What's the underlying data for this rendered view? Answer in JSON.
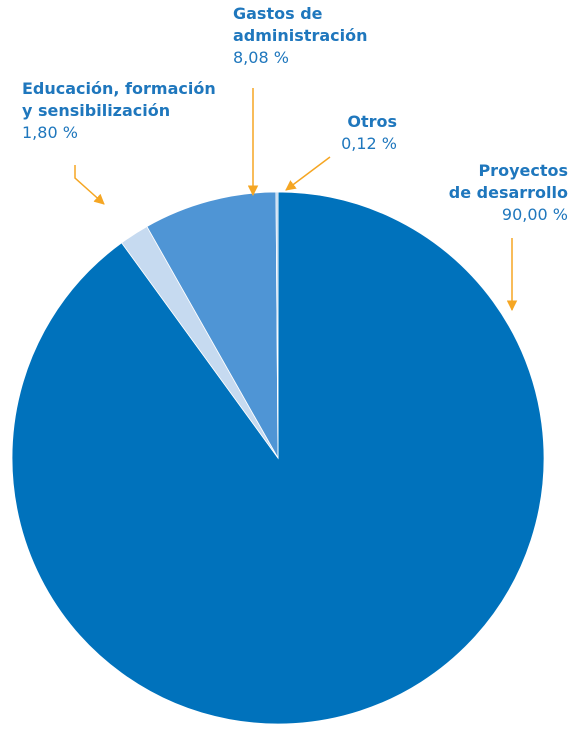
{
  "chart_data": {
    "type": "pie",
    "categories": [
      "Proyectos\nde desarrollo",
      "Educación, formación\ny sensibilización",
      "Gastos de\nadministración",
      "Otros"
    ],
    "values": [
      90.0,
      1.8,
      8.08,
      0.12
    ],
    "value_labels": [
      "90,00 %",
      "1,80 %",
      "8,08 %",
      "0,12 %"
    ],
    "colors": [
      "#0072bc",
      "#c6daf0",
      "#4f95d5",
      "#a9c9ea"
    ]
  }
}
